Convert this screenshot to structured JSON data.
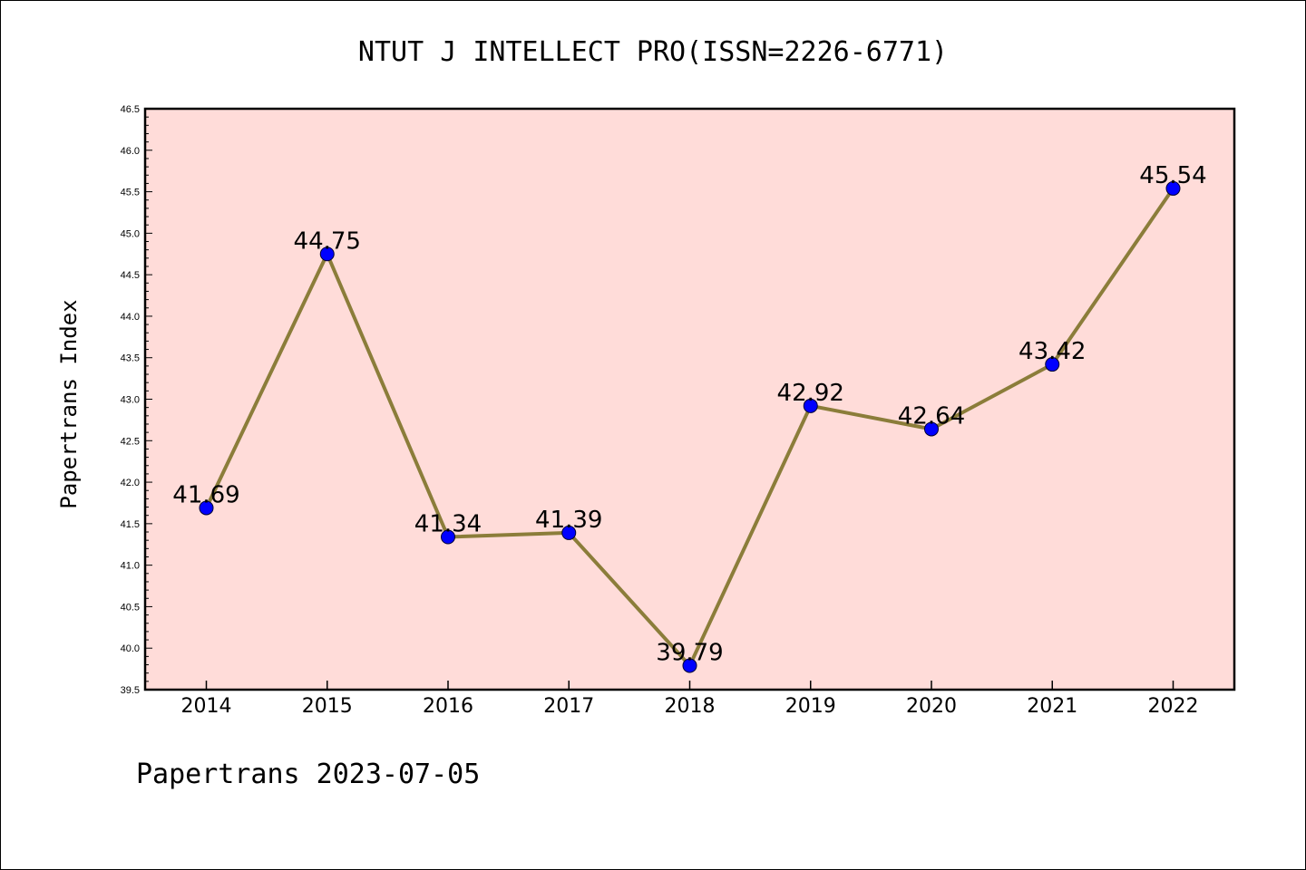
{
  "chart_data": {
    "type": "line",
    "title": "NTUT J INTELLECT PRO(ISSN=2226-6771)",
    "ylabel": "Papertrans Index",
    "xlabel": "",
    "footer": "Papertrans 2023-07-05",
    "categories": [
      "2014",
      "2015",
      "2016",
      "2017",
      "2018",
      "2019",
      "2020",
      "2021",
      "2022"
    ],
    "values": [
      41.69,
      44.75,
      41.34,
      41.39,
      39.79,
      42.92,
      42.64,
      43.42,
      45.54
    ],
    "value_labels": [
      "41.69",
      "44.75",
      "41.34",
      "41.39",
      "39.79",
      "42.92",
      "42.64",
      "43.42",
      "45.54"
    ],
    "ylim": [
      39.5,
      46.5
    ],
    "yticks": [
      "39.5",
      "40.0",
      "40.5",
      "41.0",
      "41.5",
      "42.0",
      "42.5",
      "43.0",
      "43.5",
      "44.0",
      "44.5",
      "45.0",
      "45.5",
      "46.0",
      "46.5"
    ],
    "grid": false,
    "colors": {
      "plot_background": "#ffdcd9",
      "line": "#8b7d3a",
      "marker": "#0000ff"
    }
  }
}
